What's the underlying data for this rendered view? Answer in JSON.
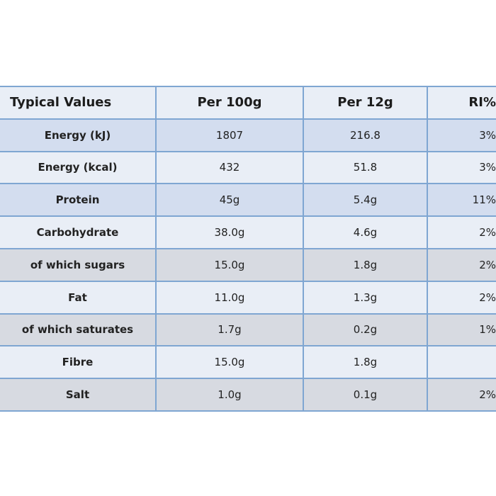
{
  "table": {
    "header": [
      "Typical Values",
      "Per 100g",
      "Per 12g",
      "RI%"
    ],
    "rows": [
      [
        "Energy (kJ)",
        "1807",
        "216.8",
        "3%"
      ],
      [
        "Energy (kcal)",
        "432",
        "51.8",
        "3%"
      ],
      [
        "Protein",
        "45g",
        "5.4g",
        "11%"
      ],
      [
        "Carbohydrate",
        "38.0g",
        "4.6g",
        "2%"
      ],
      [
        "of which sugars",
        "15.0g",
        "1.8g",
        "2%"
      ],
      [
        "Fat",
        "11.0g",
        "1.3g",
        "2%"
      ],
      [
        "of which saturates",
        "1.7g",
        "0.2g",
        "1%"
      ],
      [
        "Fibre",
        "15.0g",
        "1.8g",
        null
      ],
      [
        "Salt",
        "1.0g",
        "0.1g",
        "2%"
      ]
    ]
  }
}
